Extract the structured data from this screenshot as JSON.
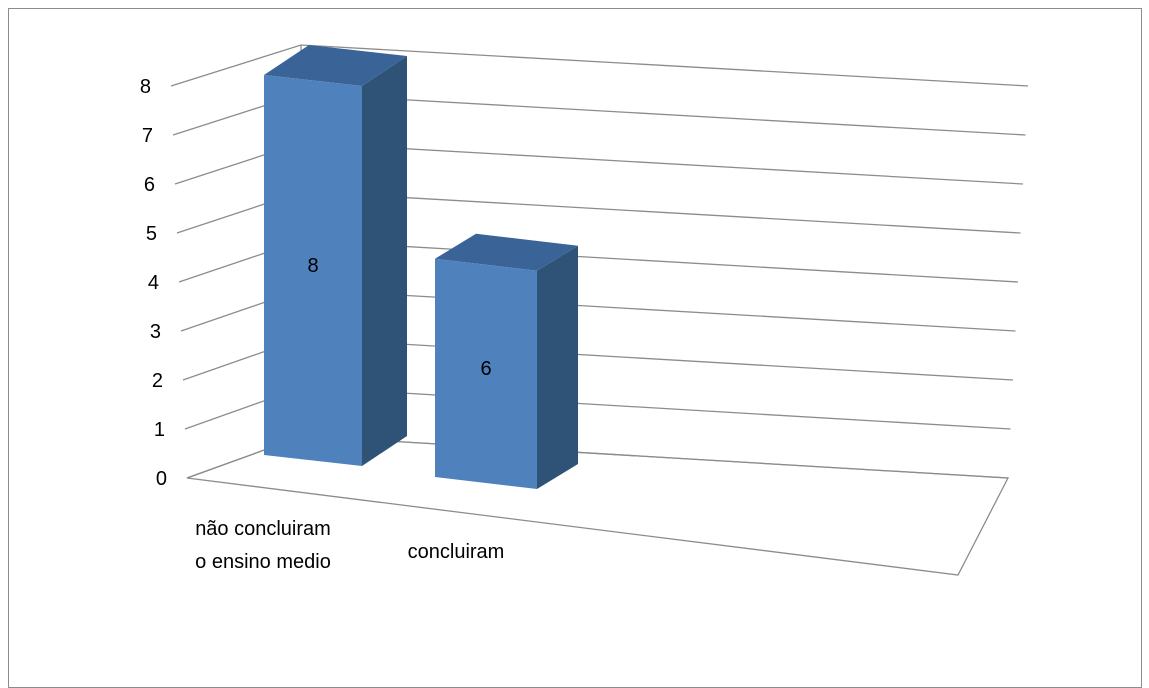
{
  "chart_data": {
    "type": "bar",
    "style": "3d-column",
    "title": "",
    "xlabel": "",
    "ylabel": "",
    "categories": [
      "não concluiram o ensino medio",
      "concluiram"
    ],
    "category_lines": [
      [
        "não concluiram",
        "o ensino medio"
      ],
      [
        "concluiram"
      ]
    ],
    "values": [
      8,
      6
    ],
    "ylim": [
      0,
      8
    ],
    "yticks": [
      0,
      1,
      2,
      3,
      4,
      5,
      6,
      7,
      8
    ],
    "grid": true,
    "legend": "none",
    "data_labels": true,
    "colors": {
      "bar_front": "#4f81bd",
      "bar_side": "#2f5277",
      "bar_top": "#3a6497",
      "grid": "#8c8c8c"
    }
  }
}
